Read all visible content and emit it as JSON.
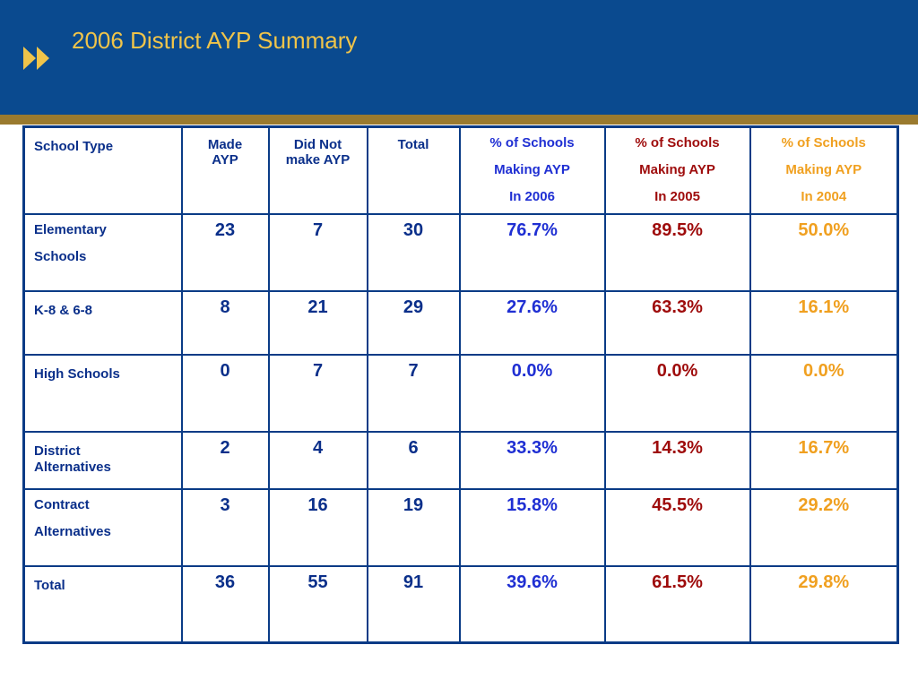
{
  "header": {
    "title": "2006 District AYP Summary"
  },
  "table": {
    "headers": {
      "school_type": "School Type",
      "made_1": "Made",
      "made_2": "AYP",
      "didnot_1": "Did Not",
      "didnot_2": "make AYP",
      "total": "Total",
      "pct2006": [
        "% of Schools",
        "Making AYP",
        "In 2006"
      ],
      "pct2005": [
        "% of Schools",
        "Making AYP",
        "In 2005"
      ],
      "pct2004": [
        "% of Schools",
        "Making AYP",
        "In 2004"
      ]
    },
    "rows": [
      {
        "label": [
          "Elementary",
          "Schools"
        ],
        "made": "23",
        "didnot": "7",
        "total": "30",
        "p2006": "76.7%",
        "p2005": "89.5%",
        "p2004": "50.0%"
      },
      {
        "label": [
          "K-8 & 6-8"
        ],
        "made": "8",
        "didnot": "21",
        "total": "29",
        "p2006": "27.6%",
        "p2005": "63.3%",
        "p2004": "16.1%"
      },
      {
        "label": [
          "High Schools"
        ],
        "made": "0",
        "didnot": "7",
        "total": "7",
        "p2006": "0.0%",
        "p2005": "0.0%",
        "p2004": "0.0%"
      },
      {
        "label": [
          "District",
          "Alternatives"
        ],
        "made": "2",
        "didnot": "4",
        "total": "6",
        "p2006": "33.3%",
        "p2005": "14.3%",
        "p2004": "16.7%"
      },
      {
        "label": [
          "Contract",
          "Alternatives"
        ],
        "made": "3",
        "didnot": "16",
        "total": "19",
        "p2006": "15.8%",
        "p2005": "45.5%",
        "p2004": "29.2%"
      },
      {
        "label": [
          "Total"
        ],
        "made": "36",
        "didnot": "55",
        "total": "91",
        "p2006": "39.6%",
        "p2005": "61.5%",
        "p2004": "29.8%"
      }
    ]
  },
  "colors": {
    "banner": "#0a4a8f",
    "gold_bar": "#9a7a2e",
    "title": "#f0c44a",
    "pct2006": "#1f2fd3",
    "pct2005": "#9e0b0b",
    "pct2004": "#f0a020"
  },
  "icons": {
    "bullet": "double-arrow-icon"
  }
}
